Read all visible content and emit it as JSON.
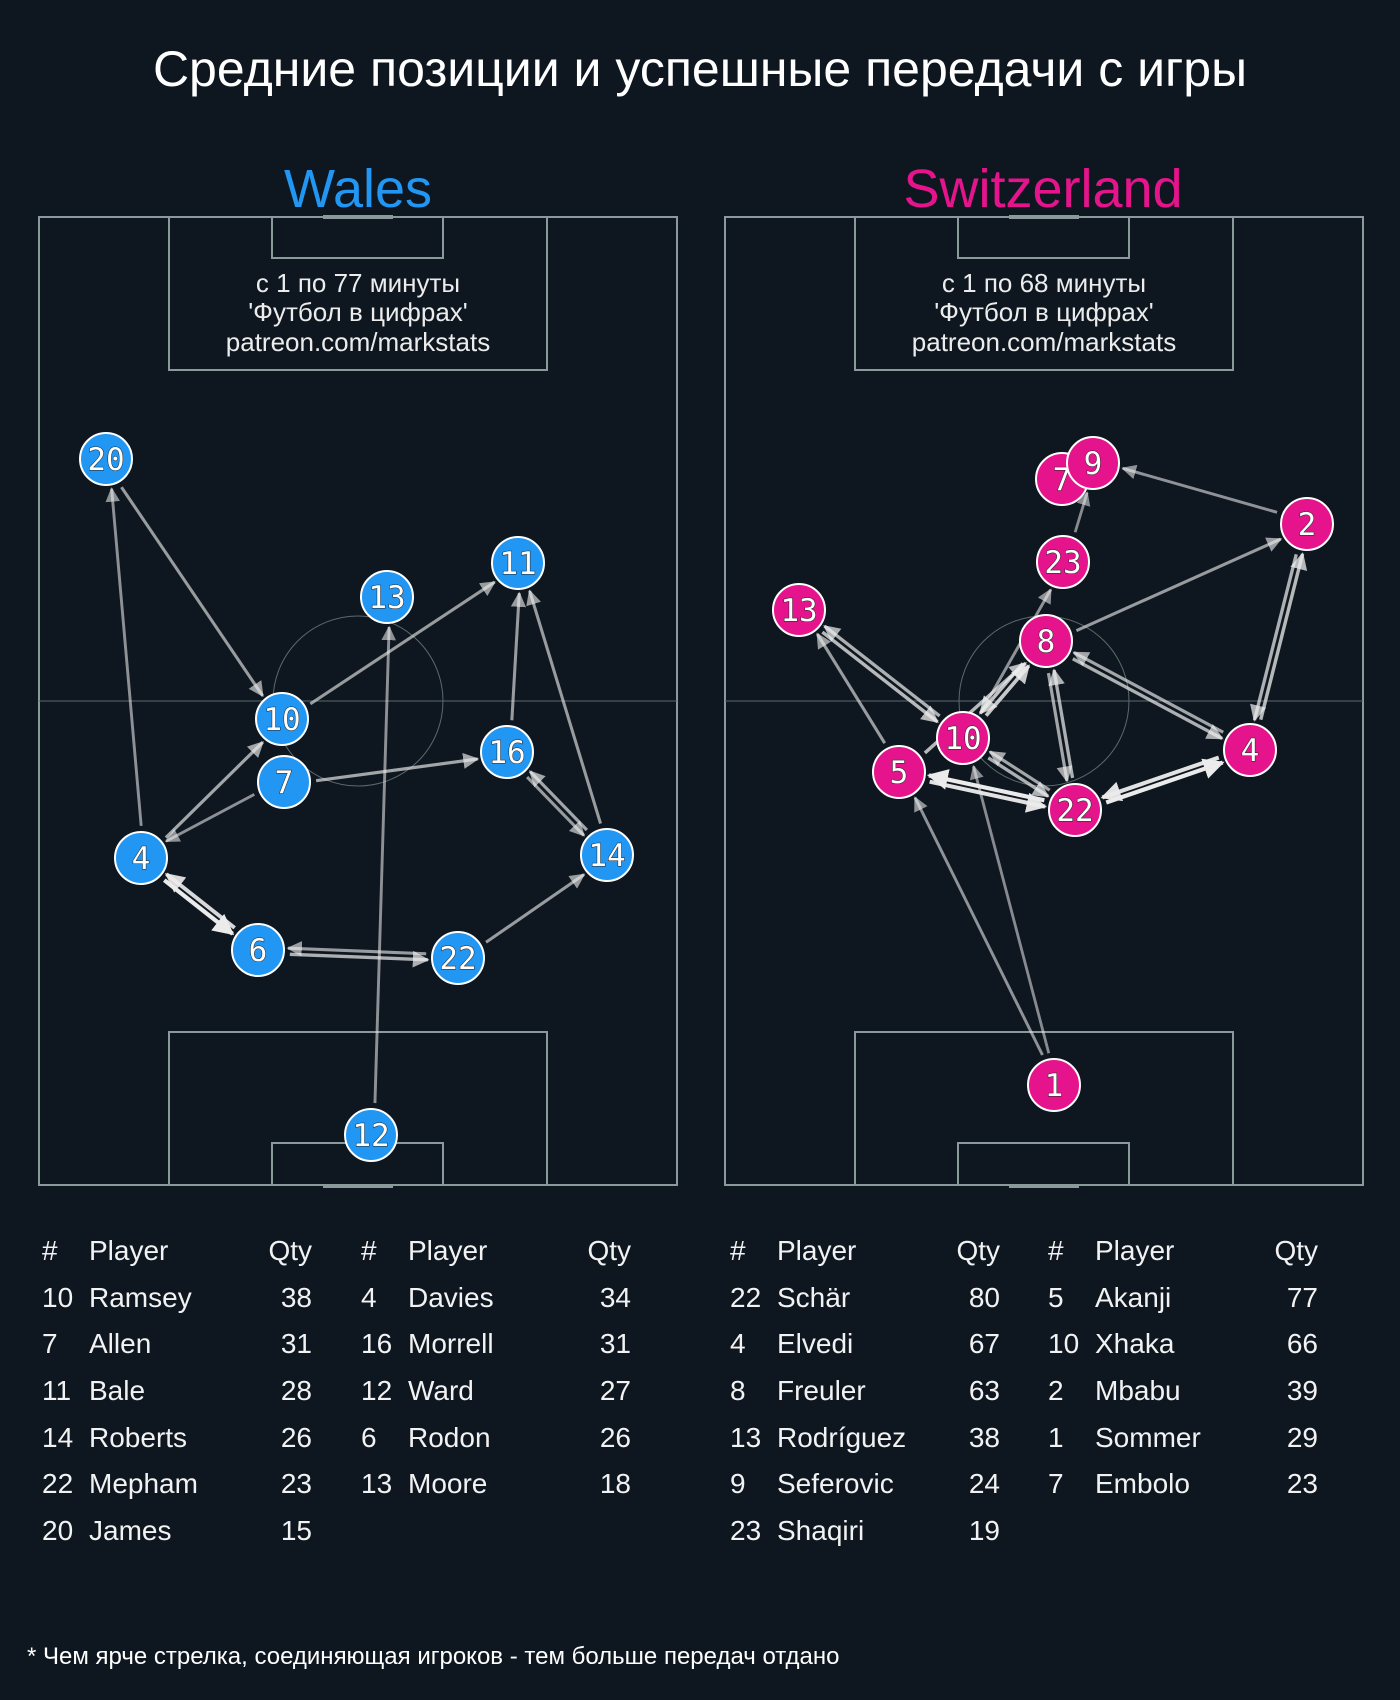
{
  "title": "Средние позиции и успешные передачи с игры",
  "footnote": "* Чем ярче стрелка, соединяющая игроков - тем больше передач отдано",
  "colors": {
    "background": "#0e1720",
    "wales": "#2196f3",
    "switzerland": "#e6148c",
    "lines": "#8a9a9a"
  },
  "teams": [
    {
      "name": "Wales",
      "color": "#2196f3",
      "info": [
        "с 1 по 77 минуты",
        "'Футбол в цифрах'",
        "patreon.com/markstats"
      ],
      "players": [
        "20",
        "10",
        "13",
        "11",
        "16",
        "7",
        "4",
        "6",
        "22",
        "14",
        "12"
      ],
      "passes": [
        {
          "from": "20",
          "to": "10",
          "count": 6
        },
        {
          "from": "4",
          "to": "20",
          "count": 5
        },
        {
          "from": "10",
          "to": "11",
          "count": 6
        },
        {
          "from": "12",
          "to": "13",
          "count": 5
        },
        {
          "from": "16",
          "to": "11",
          "count": 6
        },
        {
          "from": "14",
          "to": "11",
          "count": 6
        },
        {
          "from": "7",
          "to": "16",
          "count": 7
        },
        {
          "from": "7",
          "to": "4",
          "count": 5
        },
        {
          "from": "4",
          "to": "10",
          "count": 7
        },
        {
          "from": "4",
          "to": "6",
          "count": 14
        },
        {
          "from": "6",
          "to": "4",
          "count": 12
        },
        {
          "from": "6",
          "to": "22",
          "count": 8
        },
        {
          "from": "22",
          "to": "6",
          "count": 6
        },
        {
          "from": "22",
          "to": "14",
          "count": 6
        },
        {
          "from": "14",
          "to": "16",
          "count": 7
        },
        {
          "from": "16",
          "to": "14",
          "count": 6
        }
      ],
      "table": {
        "headers": [
          "#",
          "Player",
          "Qty"
        ],
        "left": [
          {
            "num": "10",
            "name": "Ramsey",
            "qty": "38"
          },
          {
            "num": "7",
            "name": "Allen",
            "qty": "31"
          },
          {
            "num": "11",
            "name": "Bale",
            "qty": "28"
          },
          {
            "num": "14",
            "name": "Roberts",
            "qty": "26"
          },
          {
            "num": "22",
            "name": "Mepham",
            "qty": "23"
          },
          {
            "num": "20",
            "name": "James",
            "qty": "15"
          }
        ],
        "right": [
          {
            "num": "4",
            "name": "Davies",
            "qty": "34"
          },
          {
            "num": "16",
            "name": "Morrell",
            "qty": "31"
          },
          {
            "num": "12",
            "name": "Ward",
            "qty": "27"
          },
          {
            "num": "6",
            "name": "Rodon",
            "qty": "26"
          },
          {
            "num": "13",
            "name": "Moore",
            "qty": "18"
          }
        ]
      }
    },
    {
      "name": "Switzerland",
      "color": "#e6148c",
      "info": [
        "с 1 по 68 минуты",
        "'Футбол в цифрах'",
        "patreon.com/markstats"
      ],
      "players": [
        "7",
        "9",
        "2",
        "23",
        "13",
        "8",
        "10",
        "4",
        "5",
        "22",
        "1"
      ],
      "passes": [
        {
          "from": "2",
          "to": "9",
          "count": 6
        },
        {
          "from": "23",
          "to": "9",
          "count": 5
        },
        {
          "from": "10",
          "to": "23",
          "count": 6
        },
        {
          "from": "8",
          "to": "2",
          "count": 7
        },
        {
          "from": "4",
          "to": "2",
          "count": 10
        },
        {
          "from": "2",
          "to": "4",
          "count": 9
        },
        {
          "from": "13",
          "to": "10",
          "count": 10
        },
        {
          "from": "10",
          "to": "13",
          "count": 9
        },
        {
          "from": "5",
          "to": "13",
          "count": 7
        },
        {
          "from": "10",
          "to": "8",
          "count": 12
        },
        {
          "from": "8",
          "to": "10",
          "count": 11
        },
        {
          "from": "5",
          "to": "8",
          "count": 10
        },
        {
          "from": "8",
          "to": "4",
          "count": 9
        },
        {
          "from": "4",
          "to": "8",
          "count": 8
        },
        {
          "from": "22",
          "to": "8",
          "count": 9
        },
        {
          "from": "8",
          "to": "22",
          "count": 8
        },
        {
          "from": "22",
          "to": "5",
          "count": 16
        },
        {
          "from": "5",
          "to": "22",
          "count": 15
        },
        {
          "from": "22",
          "to": "4",
          "count": 16
        },
        {
          "from": "4",
          "to": "22",
          "count": 15
        },
        {
          "from": "10",
          "to": "22",
          "count": 9
        },
        {
          "from": "22",
          "to": "10",
          "count": 8
        },
        {
          "from": "1",
          "to": "5",
          "count": 6
        },
        {
          "from": "1",
          "to": "10",
          "count": 5
        }
      ],
      "table": {
        "headers": [
          "#",
          "Player",
          "Qty"
        ],
        "left": [
          {
            "num": "22",
            "name": "Schär",
            "qty": "80"
          },
          {
            "num": "4",
            "name": "Elvedi",
            "qty": "67"
          },
          {
            "num": "8",
            "name": "Freuler",
            "qty": "63"
          },
          {
            "num": "13",
            "name": "Rodríguez",
            "qty": "38"
          },
          {
            "num": "9",
            "name": "Seferovic",
            "qty": "24"
          },
          {
            "num": "23",
            "name": "Shaqiri",
            "qty": "19"
          }
        ],
        "right": [
          {
            "num": "5",
            "name": "Akanji",
            "qty": "77"
          },
          {
            "num": "10",
            "name": "Xhaka",
            "qty": "66"
          },
          {
            "num": "2",
            "name": "Mbabu",
            "qty": "39"
          },
          {
            "num": "1",
            "name": "Sommer",
            "qty": "29"
          },
          {
            "num": "7",
            "name": "Embolo",
            "qty": "23"
          }
        ]
      }
    }
  ]
}
